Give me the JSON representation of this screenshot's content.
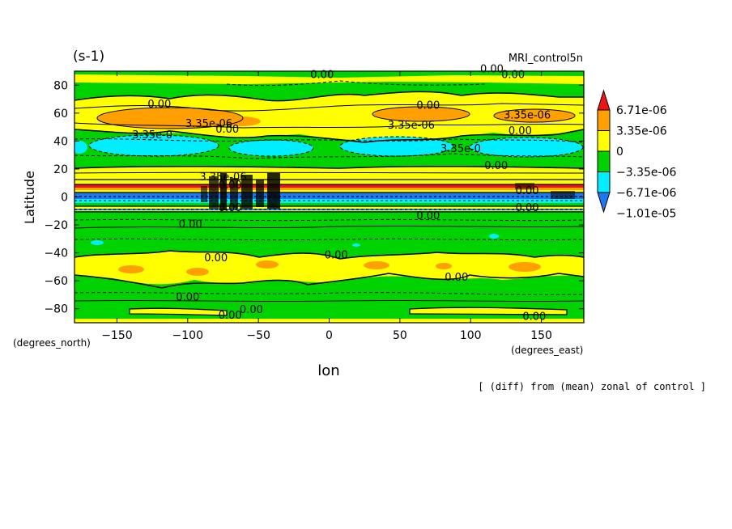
{
  "chart_data": {
    "type": "heatmap",
    "title": "MRI_control5n",
    "units": "(s-1)",
    "xlabel": "lon",
    "ylabel": "Latitude",
    "x_units": "(degrees_east)",
    "y_units": "(degrees_north)",
    "note": "[ (diff) from (mean) zonal of control ]",
    "xlim": [
      -180,
      180
    ],
    "ylim": [
      -90,
      90
    ],
    "x_ticks": [
      -150,
      -100,
      -50,
      0,
      50,
      100,
      150
    ],
    "y_ticks": [
      -80,
      -60,
      -40,
      -20,
      0,
      20,
      40,
      60,
      80
    ],
    "x_tick_labels": [
      "−150",
      "−100",
      "−50",
      "0",
      "50",
      "100",
      "150"
    ],
    "y_tick_labels": [
      "−80",
      "−60",
      "−40",
      "−20",
      "0",
      "20",
      "40",
      "60",
      "80"
    ],
    "colorbar": {
      "labels": [
        "6.71e-06",
        "3.35e-06",
        "0",
        "−3.35e-06",
        "−6.71e-06",
        "−1.01e-05"
      ],
      "levels": [
        -1.01e-05,
        -6.71e-06,
        -3.35e-06,
        0,
        3.35e-06,
        6.71e-06
      ],
      "colors": [
        "#1e78f0",
        "#00eeff",
        "#00d200",
        "#ffff00",
        "#ffa000",
        "#f01414"
      ]
    },
    "colors": {
      "bg_positive": "#ffff00",
      "bg_zero_band": "#00d200",
      "orange": "#ffa000",
      "red": "#f01414",
      "cyan": "#00eeff",
      "blue": "#1e78f0"
    },
    "contour_labels": [
      {
        "text": "0.00",
        "lon": -5,
        "lat": 85
      },
      {
        "text": "0.00",
        "lon": 115,
        "lat": 89
      },
      {
        "text": "0.00",
        "lon": 130,
        "lat": 85
      },
      {
        "text": "0.00",
        "lon": -120,
        "lat": 64
      },
      {
        "text": "0.00",
        "lon": 70,
        "lat": 63
      },
      {
        "text": "3.35e-06",
        "lon": -85,
        "lat": 50
      },
      {
        "text": "0.00",
        "lon": -72,
        "lat": 46
      },
      {
        "text": "3.35e-06",
        "lon": 58,
        "lat": 49
      },
      {
        "text": "3.35e-06",
        "lon": 140,
        "lat": 56
      },
      {
        "text": "0.00",
        "lon": 135,
        "lat": 45
      },
      {
        "text": "3.35e-0",
        "lon": -125,
        "lat": 42
      },
      {
        "text": "3.35e-0",
        "lon": 93,
        "lat": 32
      },
      {
        "text": "0.00",
        "lon": 118,
        "lat": 20
      },
      {
        "text": "3.35e-06",
        "lon": -75,
        "lat": 12
      },
      {
        "text": "0.00",
        "lon": -70,
        "lat": 6
      },
      {
        "text": "0.00",
        "lon": 140,
        "lat": 2
      },
      {
        "text": "0.00",
        "lon": -70,
        "lat": -10
      },
      {
        "text": "0.00",
        "lon": 140,
        "lat": -10
      },
      {
        "text": "0.00",
        "lon": 70,
        "lat": -16
      },
      {
        "text": "0.00",
        "lon": -98,
        "lat": -22
      },
      {
        "text": "0.00",
        "lon": -80,
        "lat": -46
      },
      {
        "text": "0.00",
        "lon": 5,
        "lat": -44
      },
      {
        "text": "0.00",
        "lon": 90,
        "lat": -60
      },
      {
        "text": "0.00",
        "lon": -100,
        "lat": -74
      },
      {
        "text": "0.00",
        "lon": -55,
        "lat": -83
      },
      {
        "text": "0.00",
        "lon": -70,
        "lat": -87
      },
      {
        "text": "0.00",
        "lon": 145,
        "lat": -88
      }
    ]
  }
}
